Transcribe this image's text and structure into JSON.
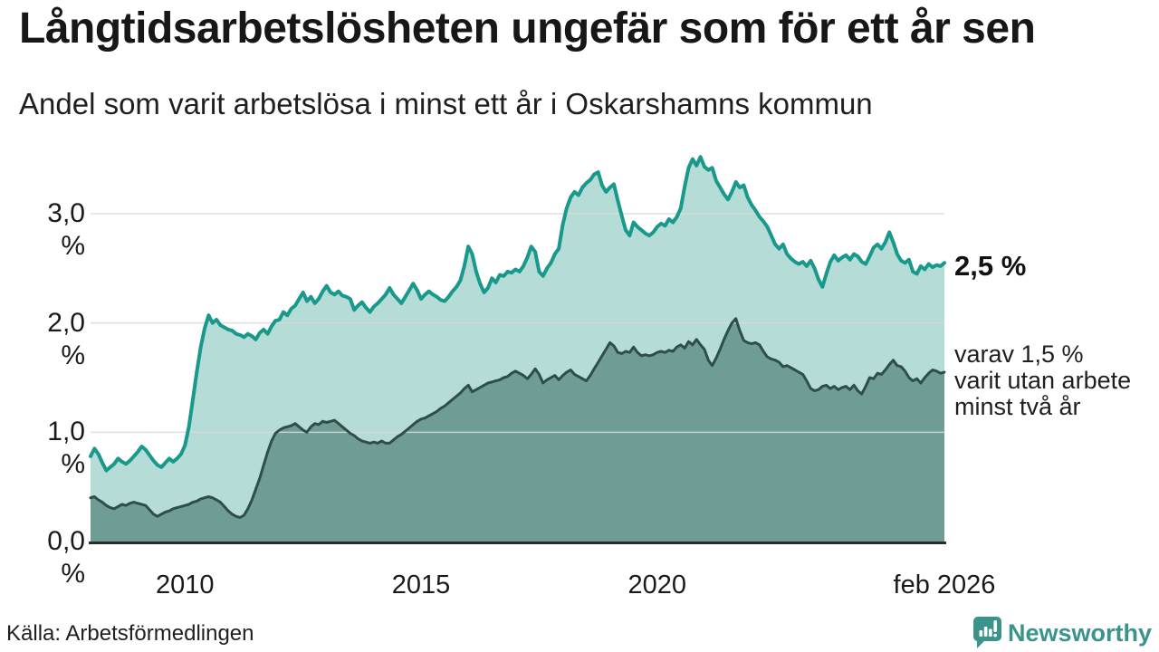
{
  "header": {
    "title": "Långtidsarbetslösheten ungefär som för ett år sen",
    "subtitle": "Andel som varit arbetslösa i minst ett år i Oskarshamns kommun"
  },
  "footer": {
    "source": "Källa: Arbetsförmedlingen",
    "brand": "Newsworthy",
    "brand_color": "#3a948c"
  },
  "chart_data": {
    "type": "area",
    "title": "Långtidsarbetslösheten ungefär som för ett år sen",
    "subtitle": "Andel som varit arbetslösa i minst ett år i Oskarshamns kommun",
    "x_start_year": 2008.0,
    "x_end_year": 2026.0833,
    "frequency_per_year": 12,
    "ylim": [
      0,
      3.6
    ],
    "grid": true,
    "gridline_color": "#d9d9d9",
    "axis_line_color": "#2b2b2b",
    "yticks": [
      {
        "value": 0,
        "label": "0,0 %"
      },
      {
        "value": 1,
        "label": "1,0 %"
      },
      {
        "value": 2,
        "label": "2,0 %"
      },
      {
        "value": 3,
        "label": "3,0 %"
      }
    ],
    "xticks": [
      {
        "value": 2010,
        "label": "2010"
      },
      {
        "value": 2015,
        "label": "2015"
      },
      {
        "value": 2020,
        "label": "2020"
      },
      {
        "value": 2026.0833,
        "label": "feb 2026"
      }
    ],
    "annotations": {
      "value": "2,5 %",
      "detail_lines": [
        "varav 1,5 %",
        "varit utan arbete",
        "minst två år"
      ]
    },
    "series": [
      {
        "name": "Andel arbetslösa minst ett år",
        "line_color": "#18998b",
        "fill_color": "#b5dcd6",
        "line_width": 4,
        "end_value_label": "2,5 %",
        "values": [
          0.78,
          0.85,
          0.8,
          0.72,
          0.65,
          0.68,
          0.71,
          0.76,
          0.73,
          0.71,
          0.74,
          0.78,
          0.82,
          0.87,
          0.84,
          0.79,
          0.74,
          0.7,
          0.68,
          0.72,
          0.76,
          0.73,
          0.76,
          0.8,
          0.88,
          1.05,
          1.3,
          1.55,
          1.78,
          1.95,
          2.07,
          2.0,
          2.03,
          1.98,
          1.96,
          1.94,
          1.93,
          1.9,
          1.89,
          1.87,
          1.9,
          1.88,
          1.85,
          1.91,
          1.94,
          1.9,
          1.97,
          2.02,
          2.03,
          2.1,
          2.07,
          2.13,
          2.16,
          2.22,
          2.28,
          2.2,
          2.24,
          2.18,
          2.22,
          2.29,
          2.34,
          2.28,
          2.26,
          2.29,
          2.25,
          2.24,
          2.22,
          2.12,
          2.16,
          2.19,
          2.14,
          2.1,
          2.15,
          2.18,
          2.22,
          2.26,
          2.32,
          2.26,
          2.22,
          2.18,
          2.24,
          2.3,
          2.36,
          2.3,
          2.22,
          2.26,
          2.29,
          2.26,
          2.24,
          2.21,
          2.2,
          2.24,
          2.29,
          2.33,
          2.39,
          2.52,
          2.7,
          2.63,
          2.47,
          2.36,
          2.28,
          2.32,
          2.41,
          2.37,
          2.44,
          2.43,
          2.47,
          2.46,
          2.49,
          2.47,
          2.52,
          2.6,
          2.7,
          2.65,
          2.47,
          2.43,
          2.5,
          2.55,
          2.63,
          2.68,
          2.9,
          3.05,
          3.15,
          3.2,
          3.17,
          3.24,
          3.28,
          3.31,
          3.36,
          3.38,
          3.26,
          3.2,
          3.24,
          3.27,
          3.12,
          2.98,
          2.85,
          2.8,
          2.92,
          2.88,
          2.85,
          2.82,
          2.8,
          2.83,
          2.88,
          2.91,
          2.89,
          2.95,
          2.92,
          2.97,
          3.05,
          3.25,
          3.42,
          3.5,
          3.44,
          3.52,
          3.43,
          3.4,
          3.42,
          3.3,
          3.24,
          3.18,
          3.13,
          3.2,
          3.29,
          3.24,
          3.26,
          3.15,
          3.08,
          3.03,
          2.97,
          2.93,
          2.88,
          2.8,
          2.72,
          2.68,
          2.72,
          2.63,
          2.59,
          2.56,
          2.54,
          2.56,
          2.52,
          2.57,
          2.5,
          2.4,
          2.33,
          2.45,
          2.56,
          2.62,
          2.57,
          2.6,
          2.62,
          2.58,
          2.63,
          2.61,
          2.56,
          2.54,
          2.61,
          2.69,
          2.72,
          2.68,
          2.74,
          2.83,
          2.74,
          2.63,
          2.57,
          2.55,
          2.58,
          2.47,
          2.45,
          2.52,
          2.49,
          2.54,
          2.51,
          2.53,
          2.52,
          2.55
        ]
      },
      {
        "name": "varav utan arbete minst två år",
        "line_color": "#2f4e49",
        "fill_color": "#6f9d96",
        "line_width": 3,
        "end_value_label": "1,5 %",
        "values": [
          0.4,
          0.41,
          0.38,
          0.36,
          0.33,
          0.31,
          0.3,
          0.32,
          0.34,
          0.33,
          0.35,
          0.36,
          0.35,
          0.34,
          0.33,
          0.29,
          0.25,
          0.23,
          0.25,
          0.27,
          0.28,
          0.3,
          0.31,
          0.32,
          0.33,
          0.34,
          0.36,
          0.37,
          0.39,
          0.4,
          0.41,
          0.4,
          0.38,
          0.36,
          0.32,
          0.28,
          0.25,
          0.23,
          0.22,
          0.24,
          0.3,
          0.38,
          0.48,
          0.58,
          0.7,
          0.82,
          0.92,
          0.99,
          1.02,
          1.04,
          1.05,
          1.06,
          1.08,
          1.05,
          1.02,
          1.0,
          1.05,
          1.08,
          1.07,
          1.1,
          1.09,
          1.1,
          1.11,
          1.08,
          1.05,
          1.02,
          0.99,
          0.97,
          0.94,
          0.92,
          0.91,
          0.9,
          0.91,
          0.9,
          0.92,
          0.9,
          0.9,
          0.93,
          0.96,
          0.98,
          1.01,
          1.04,
          1.07,
          1.1,
          1.12,
          1.13,
          1.15,
          1.17,
          1.19,
          1.22,
          1.24,
          1.27,
          1.3,
          1.33,
          1.36,
          1.4,
          1.43,
          1.37,
          1.39,
          1.41,
          1.43,
          1.45,
          1.46,
          1.47,
          1.48,
          1.5,
          1.51,
          1.54,
          1.56,
          1.54,
          1.52,
          1.49,
          1.53,
          1.58,
          1.53,
          1.45,
          1.48,
          1.5,
          1.52,
          1.48,
          1.52,
          1.55,
          1.57,
          1.53,
          1.51,
          1.49,
          1.47,
          1.52,
          1.58,
          1.64,
          1.7,
          1.76,
          1.82,
          1.79,
          1.73,
          1.72,
          1.74,
          1.73,
          1.78,
          1.73,
          1.7,
          1.71,
          1.7,
          1.71,
          1.73,
          1.74,
          1.73,
          1.75,
          1.74,
          1.78,
          1.8,
          1.77,
          1.83,
          1.8,
          1.85,
          1.8,
          1.76,
          1.66,
          1.61,
          1.68,
          1.76,
          1.85,
          1.93,
          2.0,
          2.04,
          1.93,
          1.84,
          1.82,
          1.81,
          1.82,
          1.8,
          1.74,
          1.69,
          1.67,
          1.66,
          1.64,
          1.6,
          1.61,
          1.59,
          1.57,
          1.55,
          1.53,
          1.47,
          1.4,
          1.38,
          1.39,
          1.42,
          1.43,
          1.4,
          1.42,
          1.39,
          1.41,
          1.42,
          1.39,
          1.43,
          1.38,
          1.35,
          1.42,
          1.5,
          1.49,
          1.54,
          1.53,
          1.57,
          1.62,
          1.66,
          1.61,
          1.6,
          1.56,
          1.5,
          1.47,
          1.49,
          1.45,
          1.5,
          1.54,
          1.57,
          1.56,
          1.54,
          1.55
        ]
      }
    ]
  }
}
